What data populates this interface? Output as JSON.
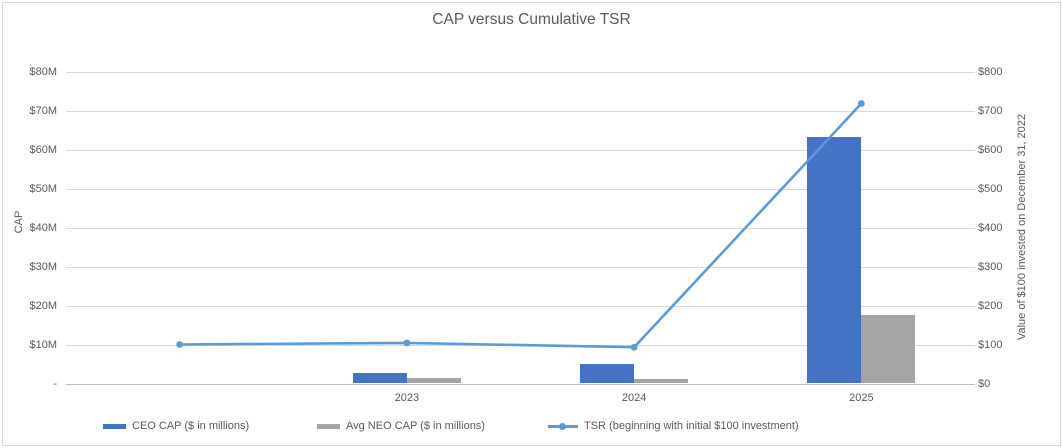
{
  "chart_data": {
    "type": "combo-bar-line",
    "title": "CAP versus Cumulative TSR",
    "categories": [
      "",
      "2023",
      "2024",
      "2025"
    ],
    "series": [
      {
        "name": "CEO CAP ($ in millions)",
        "type": "bar",
        "axis": "left",
        "color": "#4472C4",
        "values": [
          null,
          2.6,
          5.1,
          63.2
        ]
      },
      {
        "name": "Avg NEO CAP ($ in millions)",
        "type": "bar",
        "axis": "left",
        "color": "#A5A5A5",
        "values": [
          null,
          1.3,
          1.1,
          17.6
        ]
      },
      {
        "name": "TSR (beginning with initial $100 investment)",
        "type": "line",
        "axis": "right",
        "color": "#5B9BD5",
        "values": [
          100,
          104,
          93,
          718
        ]
      }
    ],
    "left_axis": {
      "title": "CAP",
      "min": 0,
      "max": 80,
      "tick_labels": [
        "$80M",
        "$70M",
        "$60M",
        "$50M",
        "$40M",
        "$30M",
        "$20M",
        "$10M",
        "-"
      ]
    },
    "right_axis": {
      "title": "Value of $100 invested on December 31, 2022",
      "min": 0,
      "max": 800,
      "tick_labels": [
        "$800",
        "$700",
        "$600",
        "$500",
        "$400",
        "$300",
        "$200",
        "$100",
        "$0"
      ]
    },
    "legend_position": "bottom",
    "grid": true,
    "colors": {
      "grid": "#D9D9D9",
      "axis_line": "#BFBFBF",
      "text": "#595959",
      "border": "#D9D9D9",
      "background": "#FFFFFF"
    }
  }
}
